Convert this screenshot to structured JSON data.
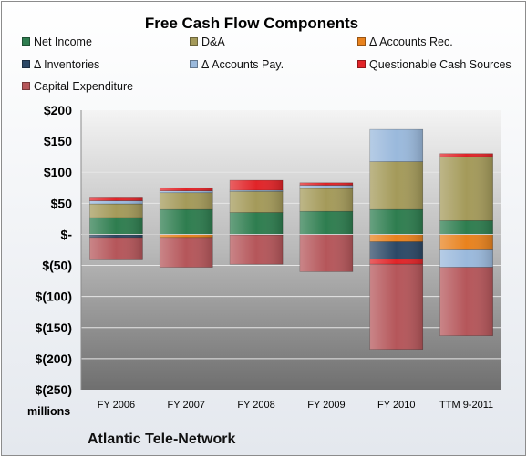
{
  "chart_data": {
    "type": "bar",
    "stacked": true,
    "title": "Free Cash Flow Components",
    "units_label": "millions",
    "footer": "Atlantic Tele-Network",
    "categories": [
      "FY 2006",
      "FY 2007",
      "FY 2008",
      "FY 2009",
      "FY 2010",
      "TTM 9-2011"
    ],
    "ylim": [
      -250,
      200
    ],
    "yticks": [
      200,
      150,
      100,
      50,
      0,
      -50,
      -100,
      -150,
      -200,
      -250
    ],
    "ytick_labels": [
      "$200",
      "$150",
      "$100",
      "$50",
      "$-",
      "$(50)",
      "$(100)",
      "$(150)",
      "$(200)",
      "$(250)"
    ],
    "grid": true,
    "legend_position": "top",
    "series": [
      {
        "name": "Net Income",
        "color": "#2e7d4f",
        "values": [
          27,
          40,
          35,
          37,
          40,
          22
        ]
      },
      {
        "name": "D&A",
        "color": "#a49a5a",
        "values": [
          22,
          27,
          34,
          37,
          77,
          103
        ]
      },
      {
        "name": "Δ Accounts Rec.",
        "color": "#e8821e",
        "values": [
          -1,
          -5,
          -1,
          0,
          -12,
          -25
        ]
      },
      {
        "name": "Δ Inventories",
        "color": "#2c4866",
        "values": [
          -4,
          0,
          0,
          0,
          -28,
          0
        ]
      },
      {
        "name": "Δ Accounts Pay.",
        "color": "#9ab9dc",
        "values": [
          5,
          3,
          2,
          5,
          52,
          -28
        ]
      },
      {
        "name": "Questionable Cash Sources",
        "color": "#e12428",
        "values": [
          6,
          5,
          16,
          4,
          -8,
          5
        ]
      },
      {
        "name": "Capital Expenditure",
        "color": "#b5565a",
        "values": [
          -36,
          -48,
          -47,
          -60,
          -137,
          -110
        ]
      }
    ]
  }
}
